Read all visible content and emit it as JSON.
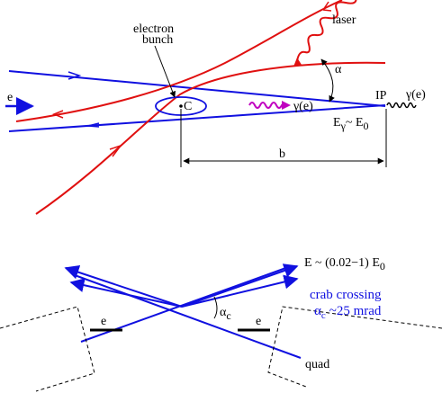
{
  "top": {
    "electron_bunch_line1": "electron",
    "electron_bunch_line2": "bunch",
    "c_label": "C",
    "e_label": "e",
    "laser_label": "laser",
    "alpha_label": "α",
    "gamma_e_label": "γ(e)",
    "ip_label": "IP",
    "gamma_e_out_label": "γ(e)",
    "energy_relation": "E",
    "energy_sub": "γ",
    "energy_rhs": "~ E",
    "energy_rhs_sub": "0",
    "b_label": "b"
  },
  "bottom": {
    "energy_range": "E ~ (0.02−1) E",
    "energy_range_sub": "0",
    "crab_crossing": "crab crossing",
    "alpha_c_main": "α",
    "alpha_c_sub": "c",
    "alpha_c_value": "~25 mrad",
    "angle_label_main": "α",
    "angle_label_sub": "c",
    "e_left": "e",
    "e_right": "e",
    "quad_label": "quad"
  },
  "colors": {
    "electron_beam": "#1010e0",
    "laser_beam": "#e01010",
    "photon": "#c000c0",
    "text": "#000000"
  }
}
